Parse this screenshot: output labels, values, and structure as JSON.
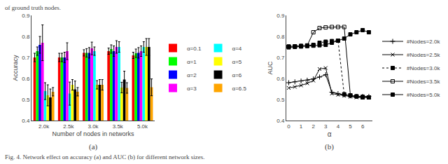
{
  "chart_data": [
    {
      "type": "bar",
      "subtitle": "(a)",
      "annotations": [
        "of ground truth nodes.",
        "Fig. 4. Network effect on accuracy (a) and AUC (b) for different network sizes."
      ],
      "categories": [
        "2.0k",
        "2.5k",
        "3.0k",
        "3.5k",
        "5.0k"
      ],
      "series": [
        {
          "name": "α=0.1",
          "color": "red",
          "values": [
            0.7,
            0.7,
            0.722,
            0.73,
            0.71
          ],
          "errors": [
            0.02,
            0.02,
            0.015,
            0.015,
            0.015
          ]
        },
        {
          "name": "α=1",
          "color": "lime",
          "values": [
            0.73,
            0.7,
            0.722,
            0.74,
            0.72
          ],
          "errors": [
            0.02,
            0.02,
            0.02,
            0.02,
            0.02
          ]
        },
        {
          "name": "α=2",
          "color": "blue",
          "values": [
            0.76,
            0.7,
            0.722,
            0.73,
            0.722
          ],
          "errors": [
            0.04,
            0.025,
            0.025,
            0.025,
            0.025
          ]
        },
        {
          "name": "α=3",
          "color": "magenta",
          "values": [
            0.77,
            0.73,
            0.743,
            0.75,
            0.73
          ],
          "errors": [
            0.085,
            0.04,
            0.03,
            0.03,
            0.025
          ]
        },
        {
          "name": "α=4",
          "color": "cyan",
          "values": [
            0.54,
            0.528,
            0.73,
            0.75,
            0.75
          ],
          "errors": [
            0.04,
            0.055,
            0.02,
            0.025,
            0.025
          ]
        },
        {
          "name": "α=5",
          "color": "yellow",
          "values": [
            0.52,
            0.57,
            0.57,
            0.557,
            0.75
          ],
          "errors": [
            0.05,
            0.025,
            0.02,
            0.025,
            0.04
          ]
        },
        {
          "name": "α=6",
          "color": "black",
          "values": [
            0.51,
            0.548,
            0.57,
            0.595,
            0.75
          ],
          "errors": [
            0.04,
            0.04,
            0.025,
            0.04,
            0.04
          ]
        },
        {
          "name": "α=6.5",
          "color": "orange",
          "values": [
            0.537,
            0.537,
            0.57,
            0.555,
            0.558
          ],
          "errors": [
            0.02,
            0.02,
            0.025,
            0.025,
            0.04
          ]
        }
      ],
      "xlabel": "Number of nodes in networks",
      "ylabel": "Accuracy",
      "ylim": [
        0.4,
        0.9
      ],
      "yticks": [
        0.4,
        0.5,
        0.6,
        0.7,
        0.8,
        0.9
      ],
      "grid": false,
      "legend": "right"
    },
    {
      "type": "line",
      "subtitle": "(b)",
      "x": [
        0.0,
        0.5,
        1.0,
        1.5,
        2.0,
        2.5,
        3.0,
        3.5,
        4.0,
        4.5,
        5.0,
        5.5,
        6.0,
        6.5
      ],
      "series": [
        {
          "name": "#Nodes=2.0k",
          "color": "black",
          "marker": "plus",
          "line_style": "solid",
          "values": [
            0.58,
            0.584,
            0.588,
            0.592,
            0.598,
            0.607,
            0.618,
            0.535,
            0.528,
            0.522,
            0.518,
            0.515,
            0.515,
            0.515
          ]
        },
        {
          "name": "#Nodes=2.5k",
          "color": "black",
          "marker": "x",
          "line_style": "solid",
          "values": [
            0.555,
            0.56,
            0.567,
            0.577,
            0.59,
            0.645,
            0.65,
            0.528,
            0.523,
            0.518,
            0.513,
            0.51,
            0.51,
            0.51
          ]
        },
        {
          "name": "#Nodes=3.0k",
          "color": "black",
          "marker": "square",
          "line_style": "dotted",
          "values": [
            0.752,
            0.753,
            0.755,
            0.757,
            0.76,
            0.77,
            0.775,
            0.778,
            0.78,
            0.525,
            0.52,
            0.515,
            0.513,
            0.51
          ]
        },
        {
          "name": "#Nodes=3.5k",
          "color": "black",
          "marker": "square-open",
          "line_style": "solid",
          "values": [
            0.752,
            0.753,
            0.755,
            0.757,
            0.82,
            0.84,
            0.843,
            0.845,
            0.845,
            0.845,
            0.52,
            0.515,
            0.51,
            0.51
          ]
        },
        {
          "name": "#Nodes=5.0k",
          "color": "black",
          "marker": "square",
          "line_style": "solid",
          "values": [
            0.748,
            0.75,
            0.752,
            0.754,
            0.756,
            0.758,
            0.76,
            0.77,
            0.78,
            0.79,
            0.81,
            0.82,
            0.83,
            0.82
          ]
        }
      ],
      "xlabel": "α",
      "ylabel": "AUC",
      "xlim": [
        -0.2,
        6.8
      ],
      "xticks": [
        0,
        1,
        2,
        3,
        4,
        5,
        6
      ],
      "ylim": [
        0.4,
        0.9
      ],
      "yticks": [
        0.4,
        0.5,
        0.6,
        0.7,
        0.8,
        0.9
      ],
      "grid": false,
      "legend": "right"
    }
  ]
}
